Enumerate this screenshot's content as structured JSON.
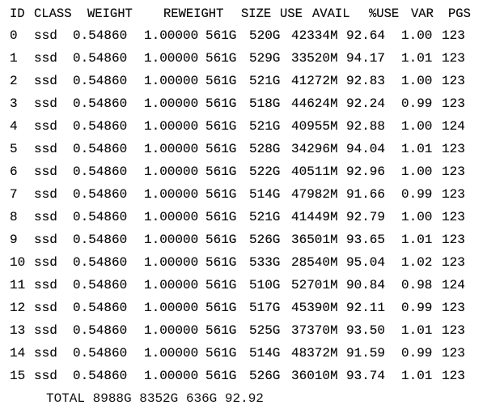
{
  "header": [
    "ID",
    "CLASS",
    "WEIGHT",
    "REWEIGHT",
    "SIZE",
    "USE",
    "AVAIL",
    "%USE",
    "VAR",
    "PGS"
  ],
  "rows": [
    [
      "0",
      "ssd",
      "0.54860",
      "1.00000",
      "561G",
      "520G",
      "42334M",
      "92.64",
      "1.00",
      "123"
    ],
    [
      "1",
      "ssd",
      "0.54860",
      "1.00000",
      "561G",
      "529G",
      "33520M",
      "94.17",
      "1.01",
      "123"
    ],
    [
      "2",
      "ssd",
      "0.54860",
      "1.00000",
      "561G",
      "521G",
      "41272M",
      "92.83",
      "1.00",
      "123"
    ],
    [
      "3",
      "ssd",
      "0.54860",
      "1.00000",
      "561G",
      "518G",
      "44624M",
      "92.24",
      "0.99",
      "123"
    ],
    [
      "4",
      "ssd",
      "0.54860",
      "1.00000",
      "561G",
      "521G",
      "40955M",
      "92.88",
      "1.00",
      "124"
    ],
    [
      "5",
      "ssd",
      "0.54860",
      "1.00000",
      "561G",
      "528G",
      "34296M",
      "94.04",
      "1.01",
      "123"
    ],
    [
      "6",
      "ssd",
      "0.54860",
      "1.00000",
      "561G",
      "522G",
      "40511M",
      "92.96",
      "1.00",
      "123"
    ],
    [
      "7",
      "ssd",
      "0.54860",
      "1.00000",
      "561G",
      "514G",
      "47982M",
      "91.66",
      "0.99",
      "123"
    ],
    [
      "8",
      "ssd",
      "0.54860",
      "1.00000",
      "561G",
      "521G",
      "41449M",
      "92.79",
      "1.00",
      "123"
    ],
    [
      "9",
      "ssd",
      "0.54860",
      "1.00000",
      "561G",
      "526G",
      "36501M",
      "93.65",
      "1.01",
      "123"
    ],
    [
      "10",
      "ssd",
      "0.54860",
      "1.00000",
      "561G",
      "533G",
      "28540M",
      "95.04",
      "1.02",
      "123"
    ],
    [
      "11",
      "ssd",
      "0.54860",
      "1.00000",
      "561G",
      "510G",
      "52701M",
      "90.84",
      "0.98",
      "124"
    ],
    [
      "12",
      "ssd",
      "0.54860",
      "1.00000",
      "561G",
      "517G",
      "45390M",
      "92.11",
      "0.99",
      "123"
    ],
    [
      "13",
      "ssd",
      "0.54860",
      "1.00000",
      "561G",
      "525G",
      "37370M",
      "93.50",
      "1.01",
      "123"
    ],
    [
      "14",
      "ssd",
      "0.54860",
      "1.00000",
      "561G",
      "514G",
      "48372M",
      "91.59",
      "0.99",
      "123"
    ],
    [
      "15",
      "ssd",
      "0.54860",
      "1.00000",
      "561G",
      "526G",
      "36010M",
      "93.74",
      "1.01",
      "123"
    ]
  ],
  "total": {
    "label": "TOTAL",
    "size": "8988G",
    "use": "8352G",
    "avail": "636G",
    "pct": "92.92"
  }
}
